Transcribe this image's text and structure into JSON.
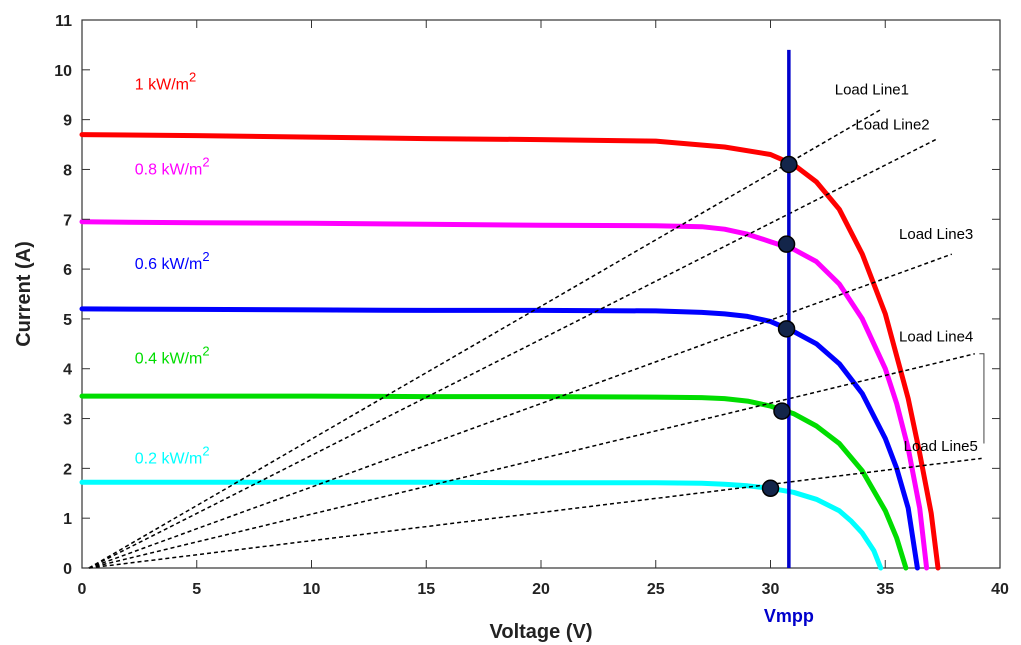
{
  "chart_data": {
    "type": "line",
    "xlabel": "Voltage (V)",
    "ylabel": "Current (A)",
    "xlim": [
      0,
      40
    ],
    "ylim": [
      0,
      11
    ],
    "xticks": [
      0,
      5,
      10,
      15,
      20,
      25,
      30,
      35,
      40
    ],
    "yticks": [
      0,
      1,
      2,
      3,
      4,
      5,
      6,
      7,
      8,
      9,
      10,
      11
    ],
    "grid": false,
    "series": [
      {
        "name": "1 kW/m",
        "sup": "2",
        "color": "#ff0000",
        "x": [
          0,
          5,
          10,
          15,
          20,
          25,
          28,
          30,
          31,
          32,
          33,
          34,
          35,
          36,
          36.5,
          37,
          37.3
        ],
        "y": [
          8.7,
          8.68,
          8.65,
          8.62,
          8.6,
          8.57,
          8.45,
          8.3,
          8.1,
          7.75,
          7.2,
          6.3,
          5.1,
          3.4,
          2.3,
          1.1,
          0
        ]
      },
      {
        "name": "0.8 kW/m",
        "sup": "2",
        "color": "#ff00ff",
        "x": [
          0,
          5,
          10,
          15,
          20,
          25,
          27,
          28,
          29,
          30,
          31,
          32,
          33,
          34,
          35,
          35.5,
          36,
          36.5,
          36.8
        ],
        "y": [
          6.95,
          6.93,
          6.92,
          6.9,
          6.88,
          6.87,
          6.85,
          6.8,
          6.7,
          6.55,
          6.4,
          6.15,
          5.7,
          5.0,
          4.0,
          3.3,
          2.4,
          1.2,
          0
        ]
      },
      {
        "name": "0.6 kW/m",
        "sup": "2",
        "color": "#0000ff",
        "x": [
          0,
          5,
          10,
          15,
          20,
          25,
          27,
          28,
          29,
          30,
          31,
          32,
          33,
          34,
          35,
          35.5,
          36,
          36.4
        ],
        "y": [
          5.2,
          5.19,
          5.18,
          5.17,
          5.17,
          5.16,
          5.13,
          5.1,
          5.05,
          4.95,
          4.75,
          4.5,
          4.1,
          3.5,
          2.6,
          2.0,
          1.2,
          0
        ]
      },
      {
        "name": "0.4 kW/m",
        "sup": "2",
        "color": "#00dd00",
        "x": [
          0,
          5,
          10,
          15,
          20,
          25,
          27,
          28,
          29,
          30,
          31,
          32,
          33,
          34,
          35,
          35.5,
          35.9
        ],
        "y": [
          3.45,
          3.45,
          3.45,
          3.44,
          3.44,
          3.43,
          3.42,
          3.4,
          3.35,
          3.25,
          3.1,
          2.85,
          2.5,
          1.95,
          1.15,
          0.6,
          0
        ]
      },
      {
        "name": "0.2 kW/m",
        "sup": "2",
        "color": "#00ffff",
        "x": [
          0,
          5,
          10,
          15,
          20,
          25,
          27,
          28,
          29,
          30,
          31,
          32,
          33,
          33.5,
          34,
          34.5,
          34.8
        ],
        "y": [
          1.72,
          1.72,
          1.72,
          1.72,
          1.71,
          1.71,
          1.7,
          1.68,
          1.65,
          1.6,
          1.52,
          1.38,
          1.15,
          0.95,
          0.7,
          0.35,
          0
        ]
      }
    ],
    "vmpp": {
      "label": "Vmpp",
      "x": 30.8,
      "color": "#0000cc"
    },
    "mpp_points": [
      {
        "x": 30.8,
        "y": 8.1
      },
      {
        "x": 30.7,
        "y": 6.5
      },
      {
        "x": 30.7,
        "y": 4.8
      },
      {
        "x": 30.5,
        "y": 3.15
      },
      {
        "x": 30.0,
        "y": 1.6
      }
    ],
    "load_lines": [
      {
        "label": "Load Line1",
        "end": [
          34.8,
          9.2
        ]
      },
      {
        "label": "Load Line2",
        "end": [
          37.2,
          8.6
        ]
      },
      {
        "label": "Load Line3",
        "end": [
          37.9,
          6.3
        ]
      },
      {
        "label": "Load Line4",
        "end": [
          38.9,
          4.3
        ]
      },
      {
        "label": "Load Line5",
        "end": [
          39.2,
          2.2
        ]
      }
    ]
  }
}
